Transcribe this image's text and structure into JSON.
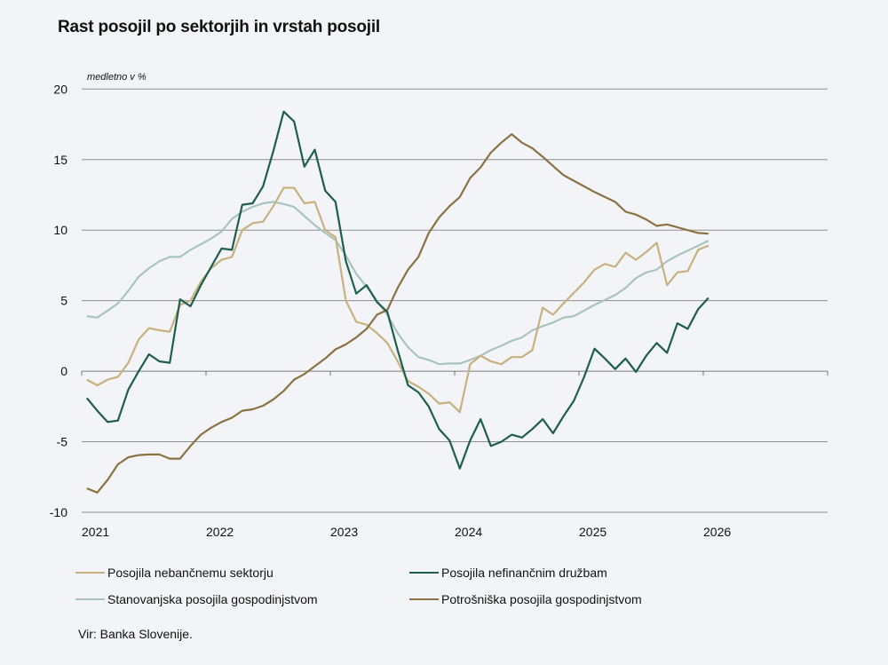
{
  "chart_data": {
    "type": "line",
    "title": "Rast posojil po sektorjih in vrstah posojil",
    "ylabel": "medletno v %",
    "xlabel": "",
    "ylim": [
      -10,
      20
    ],
    "yticks": [
      "20",
      "15",
      "10",
      "5",
      "0",
      "-5",
      "-10"
    ],
    "ytick_values": [
      20,
      15,
      10,
      5,
      0,
      -5,
      -10
    ],
    "xticks": [
      "2021",
      "2022",
      "2023",
      "2024",
      "2025",
      "2026"
    ],
    "x_range": [
      "2021-01",
      "2027-01"
    ],
    "x_start": "2021-01",
    "x_frequency": "monthly",
    "grid": "horizontal",
    "legend_position": "bottom",
    "series": [
      {
        "name": "Posojila nebančnemu sektorju",
        "color": "#c9b07f",
        "values": [
          -0.6,
          -1.0,
          -0.6,
          -0.4,
          0.6,
          2.25,
          3.05,
          2.9,
          2.8,
          4.7,
          5.0,
          6.35,
          7.3,
          7.9,
          8.1,
          10.0,
          10.5,
          10.6,
          11.7,
          13.0,
          13.0,
          11.9,
          12.0,
          10.0,
          9.5,
          5.0,
          3.5,
          3.3,
          2.7,
          2.0,
          0.7,
          -0.7,
          -1.1,
          -1.6,
          -2.3,
          -2.2,
          -2.9,
          0.5,
          1.1,
          0.7,
          0.5,
          1.0,
          1.0,
          1.5,
          4.5,
          4.0,
          4.8,
          5.55,
          6.3,
          7.2,
          7.6,
          7.4,
          8.4,
          7.9,
          8.45,
          9.1,
          6.1,
          7.0,
          7.1,
          8.6,
          8.9
        ]
      },
      {
        "name": "Posojila nefinančnim družbam",
        "color": "#1e5f4a",
        "values": [
          -1.9,
          -2.8,
          -3.6,
          -3.5,
          -1.3,
          0.0,
          1.2,
          0.7,
          0.6,
          5.1,
          4.6,
          6.1,
          7.4,
          8.7,
          8.6,
          11.8,
          11.9,
          13.1,
          15.6,
          18.4,
          17.7,
          14.5,
          15.7,
          12.8,
          12.0,
          7.8,
          5.5,
          6.1,
          4.9,
          4.2,
          1.5,
          -1.0,
          -1.5,
          -2.5,
          -4.1,
          -4.9,
          -6.9,
          -4.9,
          -3.4,
          -5.3,
          -5.0,
          -4.5,
          -4.7,
          -4.1,
          -3.4,
          -4.4,
          -3.2,
          -2.1,
          -0.4,
          1.6,
          0.9,
          0.15,
          0.9,
          -0.05,
          1.1,
          2.0,
          1.3,
          3.4,
          3.0,
          4.4,
          5.2
        ]
      },
      {
        "name": "Stanovanjska posojila gospodinjstvom",
        "color": "#a8c5bd",
        "values": [
          3.9,
          3.8,
          4.3,
          4.8,
          5.7,
          6.7,
          7.3,
          7.8,
          8.1,
          8.1,
          8.6,
          9.0,
          9.4,
          9.9,
          10.8,
          11.3,
          11.65,
          11.9,
          12.0,
          11.85,
          11.65,
          11.0,
          10.35,
          9.8,
          9.3,
          8.2,
          6.9,
          6.0,
          5.0,
          4.0,
          2.7,
          1.7,
          1.0,
          0.8,
          0.5,
          0.55,
          0.55,
          0.8,
          1.1,
          1.5,
          1.8,
          2.15,
          2.4,
          2.9,
          3.2,
          3.45,
          3.8,
          3.9,
          4.3,
          4.7,
          5.05,
          5.4,
          5.9,
          6.6,
          7.0,
          7.2,
          7.8,
          8.2,
          8.55,
          8.9,
          9.25
        ]
      },
      {
        "name": "Potrošniška posojila gospodinjstvom",
        "color": "#8c7242",
        "values": [
          -8.3,
          -8.6,
          -7.7,
          -6.6,
          -6.1,
          -5.95,
          -5.9,
          -5.9,
          -6.2,
          -6.2,
          -5.3,
          -4.5,
          -4.0,
          -3.6,
          -3.3,
          -2.8,
          -2.7,
          -2.45,
          -2.0,
          -1.4,
          -0.6,
          -0.2,
          0.35,
          0.9,
          1.55,
          1.9,
          2.4,
          3.0,
          4.0,
          4.35,
          5.9,
          7.2,
          8.1,
          9.8,
          10.9,
          11.7,
          12.35,
          13.7,
          14.45,
          15.5,
          16.2,
          16.8,
          16.2,
          15.8,
          15.2,
          14.55,
          13.9,
          13.5,
          13.1,
          12.7,
          12.35,
          12.0,
          11.3,
          11.1,
          10.75,
          10.3,
          10.4,
          10.2,
          10.0,
          9.8,
          9.75
        ]
      }
    ],
    "source": "Vir: Banka Slovenije."
  }
}
